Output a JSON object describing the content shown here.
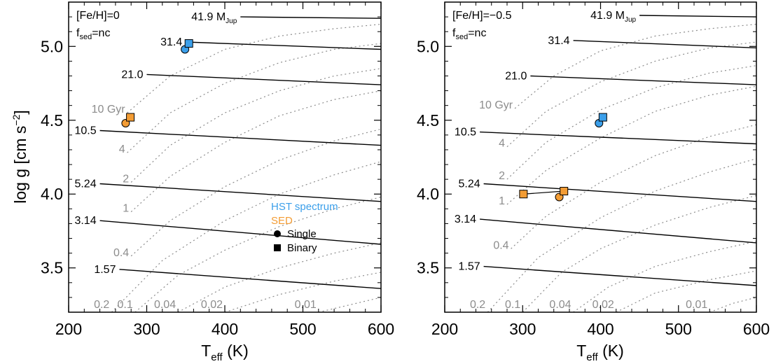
{
  "figure": {
    "ylabel_main": "log g [cm s",
    "ylabel_sup": "−2",
    "ylabel_close": "]",
    "xlabel_main": "T",
    "xlabel_sub": "eff",
    "xlabel_unit": " (K)"
  },
  "chart_data": [
    {
      "type": "line",
      "panel": "left",
      "annotation": {
        "feh": "[Fe/H]=0",
        "fsed_main": "f",
        "fsed_sub": "sed",
        "fsed_value": "=nc"
      },
      "xlim": [
        200,
        600
      ],
      "ylim": [
        3.2,
        5.3
      ],
      "xticks": [
        "200",
        "300",
        "400",
        "500",
        "600"
      ],
      "yticks": [
        "3.5",
        "4.0",
        "4.5",
        "5.0"
      ],
      "mass_tracks": [
        {
          "label": "41.9",
          "unit_main": "M",
          "unit_sub": "Jup",
          "x": [
            420,
            600
          ],
          "y": [
            5.2,
            5.19
          ]
        },
        {
          "label": "31.4",
          "x": [
            350,
            600
          ],
          "y": [
            5.03,
            4.98
          ]
        },
        {
          "label": "21.0",
          "x": [
            300,
            600
          ],
          "y": [
            4.81,
            4.74
          ]
        },
        {
          "label": "10.5",
          "x": [
            240,
            600
          ],
          "y": [
            4.43,
            4.33
          ]
        },
        {
          "label": "5.24",
          "x": [
            240,
            600
          ],
          "y": [
            4.07,
            3.95
          ]
        },
        {
          "label": "3.14",
          "x": [
            240,
            600
          ],
          "y": [
            3.82,
            3.66
          ]
        },
        {
          "label": "1.57",
          "x": [
            265,
            600
          ],
          "y": [
            3.49,
            3.36
          ]
        }
      ],
      "isochrones": [
        {
          "label": "10 Gyr",
          "x": [
            275,
            330,
            400,
            470,
            540,
            600
          ],
          "y": [
            4.55,
            4.8,
            4.98,
            5.07,
            5.12,
            5.15
          ]
        },
        {
          "label": "4",
          "x": [
            275,
            330,
            400,
            470,
            540,
            600
          ],
          "y": [
            4.28,
            4.55,
            4.75,
            4.89,
            4.98,
            5.02
          ]
        },
        {
          "label": "2",
          "x": [
            280,
            330,
            400,
            470,
            540,
            600
          ],
          "y": [
            4.08,
            4.33,
            4.55,
            4.7,
            4.8,
            4.85
          ]
        },
        {
          "label": "1",
          "x": [
            280,
            330,
            400,
            470,
            540,
            600
          ],
          "y": [
            3.88,
            4.12,
            4.35,
            4.53,
            4.64,
            4.7
          ]
        },
        {
          "label": "0.4",
          "x": [
            280,
            330,
            400,
            470,
            540,
            600
          ],
          "y": [
            3.58,
            3.82,
            4.05,
            4.23,
            4.36,
            4.44
          ]
        },
        {
          "label": "0.2",
          "x": [
            255,
            320,
            400,
            470,
            540,
            600
          ],
          "y": [
            3.2,
            3.55,
            3.82,
            4.0,
            4.13,
            4.22
          ]
        },
        {
          "label": "0.1",
          "x": [
            285,
            340,
            400,
            470,
            540,
            600
          ],
          "y": [
            3.2,
            3.45,
            3.62,
            3.78,
            3.9,
            3.98
          ]
        },
        {
          "label": "0.04",
          "x": [
            340,
            400,
            470,
            540,
            600
          ],
          "y": [
            3.2,
            3.37,
            3.5,
            3.6,
            3.67
          ]
        },
        {
          "label": "0.02",
          "x": [
            400,
            470,
            540,
            600
          ],
          "y": [
            3.2,
            3.32,
            3.41,
            3.47
          ]
        },
        {
          "label": "0.01",
          "x": [
            520,
            560,
            600
          ],
          "y": [
            3.2,
            3.25,
            3.3
          ]
        }
      ],
      "points": [
        {
          "method": "HST spectrum",
          "marker": "circle",
          "x": 349,
          "y": 4.98,
          "color": "#3b9fea"
        },
        {
          "method": "HST spectrum",
          "marker": "square",
          "x": 354,
          "y": 5.02,
          "color": "#3b9fea"
        },
        {
          "method": "SED",
          "marker": "circle",
          "x": 273,
          "y": 4.48,
          "color": "#f39c34"
        },
        {
          "method": "SED",
          "marker": "square",
          "x": 279,
          "y": 4.52,
          "color": "#f39c34"
        }
      ],
      "legend": {
        "placement": "lower-right",
        "entries": [
          {
            "label": "HST spectrum",
            "color": "#3b9fea"
          },
          {
            "label": "SED",
            "color": "#f39c34"
          },
          {
            "label": "Single",
            "color": "#000000",
            "marker": "circle"
          },
          {
            "label": "Binary",
            "color": "#000000",
            "marker": "square"
          }
        ]
      }
    },
    {
      "type": "line",
      "panel": "right",
      "annotation": {
        "feh": "[Fe/H]=−0.5",
        "fsed_main": "f",
        "fsed_sub": "sed",
        "fsed_value": "=nc"
      },
      "xlim": [
        200,
        600
      ],
      "ylim": [
        3.2,
        5.3
      ],
      "xticks": [
        "200",
        "300",
        "400",
        "500",
        "600"
      ],
      "yticks": [
        "3.5",
        "4.0",
        "4.5",
        "5.0"
      ],
      "mass_tracks": [
        {
          "label": "41.9",
          "unit_main": "M",
          "unit_sub": "Jup",
          "x": [
            450,
            600
          ],
          "y": [
            5.21,
            5.2
          ]
        },
        {
          "label": "31.4",
          "x": [
            365,
            600
          ],
          "y": [
            5.04,
            4.99
          ]
        },
        {
          "label": "21.0",
          "x": [
            310,
            600
          ],
          "y": [
            4.8,
            4.74
          ]
        },
        {
          "label": "10.5",
          "x": [
            245,
            600
          ],
          "y": [
            4.42,
            4.34
          ]
        },
        {
          "label": "5.24",
          "x": [
            250,
            600
          ],
          "y": [
            4.07,
            3.95
          ]
        },
        {
          "label": "3.14",
          "x": [
            245,
            600
          ],
          "y": [
            3.83,
            3.67
          ]
        },
        {
          "label": "1.57",
          "x": [
            250,
            600
          ],
          "y": [
            3.51,
            3.38
          ]
        }
      ],
      "isochrones": [
        {
          "label": "10 Gyr",
          "x": [
            290,
            340,
            400,
            470,
            540,
            600
          ],
          "y": [
            4.58,
            4.8,
            4.97,
            5.07,
            5.12,
            5.15
          ]
        },
        {
          "label": "4",
          "x": [
            280,
            330,
            400,
            470,
            540,
            600
          ],
          "y": [
            4.32,
            4.56,
            4.76,
            4.9,
            4.99,
            5.03
          ]
        },
        {
          "label": "2",
          "x": [
            280,
            330,
            400,
            470,
            540,
            600
          ],
          "y": [
            4.1,
            4.35,
            4.57,
            4.72,
            4.82,
            4.87
          ]
        },
        {
          "label": "1",
          "x": [
            280,
            330,
            400,
            470,
            540,
            600
          ],
          "y": [
            3.93,
            4.16,
            4.38,
            4.56,
            4.67,
            4.73
          ]
        },
        {
          "label": "0.4",
          "x": [
            285,
            330,
            400,
            470,
            540,
            600
          ],
          "y": [
            3.63,
            3.85,
            4.08,
            4.26,
            4.39,
            4.47
          ]
        },
        {
          "label": "0.2",
          "x": [
            255,
            320,
            400,
            470,
            540,
            600
          ],
          "y": [
            3.2,
            3.57,
            3.84,
            4.02,
            4.15,
            4.24
          ]
        },
        {
          "label": "0.1",
          "x": [
            300,
            350,
            400,
            470,
            540,
            600
          ],
          "y": [
            3.2,
            3.47,
            3.63,
            3.79,
            3.91,
            3.99
          ]
        },
        {
          "label": "0.04",
          "x": [
            365,
            410,
            470,
            540,
            600
          ],
          "y": [
            3.2,
            3.37,
            3.51,
            3.61,
            3.68
          ]
        },
        {
          "label": "0.02",
          "x": [
            420,
            470,
            540,
            600
          ],
          "y": [
            3.2,
            3.33,
            3.42,
            3.48
          ]
        },
        {
          "label": "0.01",
          "x": [
            540,
            570,
            600
          ],
          "y": [
            3.2,
            3.26,
            3.3
          ]
        }
      ],
      "points": [
        {
          "method": "HST spectrum",
          "marker": "circle",
          "x": 398,
          "y": 4.48,
          "color": "#3b9fea"
        },
        {
          "method": "HST spectrum",
          "marker": "square",
          "x": 403,
          "y": 4.52,
          "color": "#3b9fea"
        },
        {
          "method": "SED",
          "marker": "circle",
          "x": 347,
          "y": 3.98,
          "color": "#f39c34"
        },
        {
          "method": "SED",
          "marker": "square",
          "x": 353,
          "y": 4.02,
          "color": "#f39c34"
        },
        {
          "method": "SED",
          "marker": "square",
          "x": 301,
          "y": 4.0,
          "color": "#f39c34"
        }
      ],
      "connectors": [
        {
          "x": [
            301,
            353
          ],
          "y": [
            4.0,
            4.02
          ]
        }
      ]
    }
  ]
}
